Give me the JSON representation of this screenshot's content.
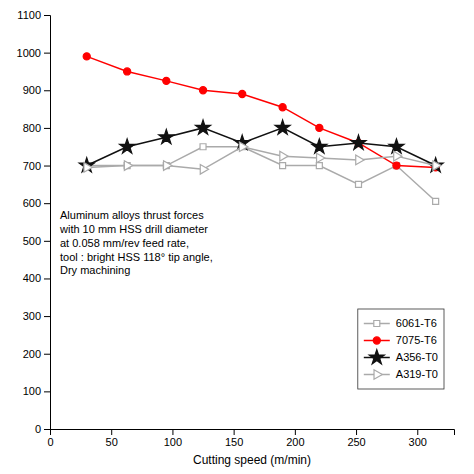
{
  "chart_data": {
    "type": "line",
    "xlabel": "Cutting speed (m/min)",
    "annotation": "Aluminum alloys thrust forces\nwith 10 mm HSS drill diameter\nat 0.058 mm/rev feed rate,\ntool : bright HSS 118° tip angle,\nDry machining",
    "x": [
      30,
      63,
      95,
      125,
      157,
      190,
      220,
      252,
      283,
      315
    ],
    "series": [
      {
        "name": "6061-T6",
        "color": "#aaaaaa",
        "marker": "square-open",
        "values": [
          700,
          700,
          700,
          750,
          750,
          700,
          700,
          650,
          700,
          605
        ]
      },
      {
        "name": "7075-T6",
        "color": "#ff0000",
        "marker": "circle",
        "values": [
          990,
          950,
          925,
          900,
          890,
          855,
          800,
          760,
          700,
          695
        ]
      },
      {
        "name": "A356-T0",
        "color": "#111111",
        "marker": "star",
        "values": [
          700,
          750,
          775,
          800,
          760,
          800,
          750,
          760,
          750,
          700
        ]
      },
      {
        "name": "A319-T0",
        "color": "#aaaaaa",
        "marker": "triangle-right-open",
        "values": [
          695,
          700,
          700,
          690,
          750,
          725,
          720,
          715,
          725,
          700
        ]
      }
    ],
    "xlim": [
      0,
      330
    ],
    "ylim": [
      0,
      1100
    ],
    "xticks": [
      0,
      50,
      100,
      150,
      200,
      250,
      300
    ],
    "yticks": [
      0,
      100,
      200,
      300,
      400,
      500,
      600,
      700,
      800,
      900,
      1000,
      1100
    ],
    "grid": false,
    "legend": "lower right"
  }
}
